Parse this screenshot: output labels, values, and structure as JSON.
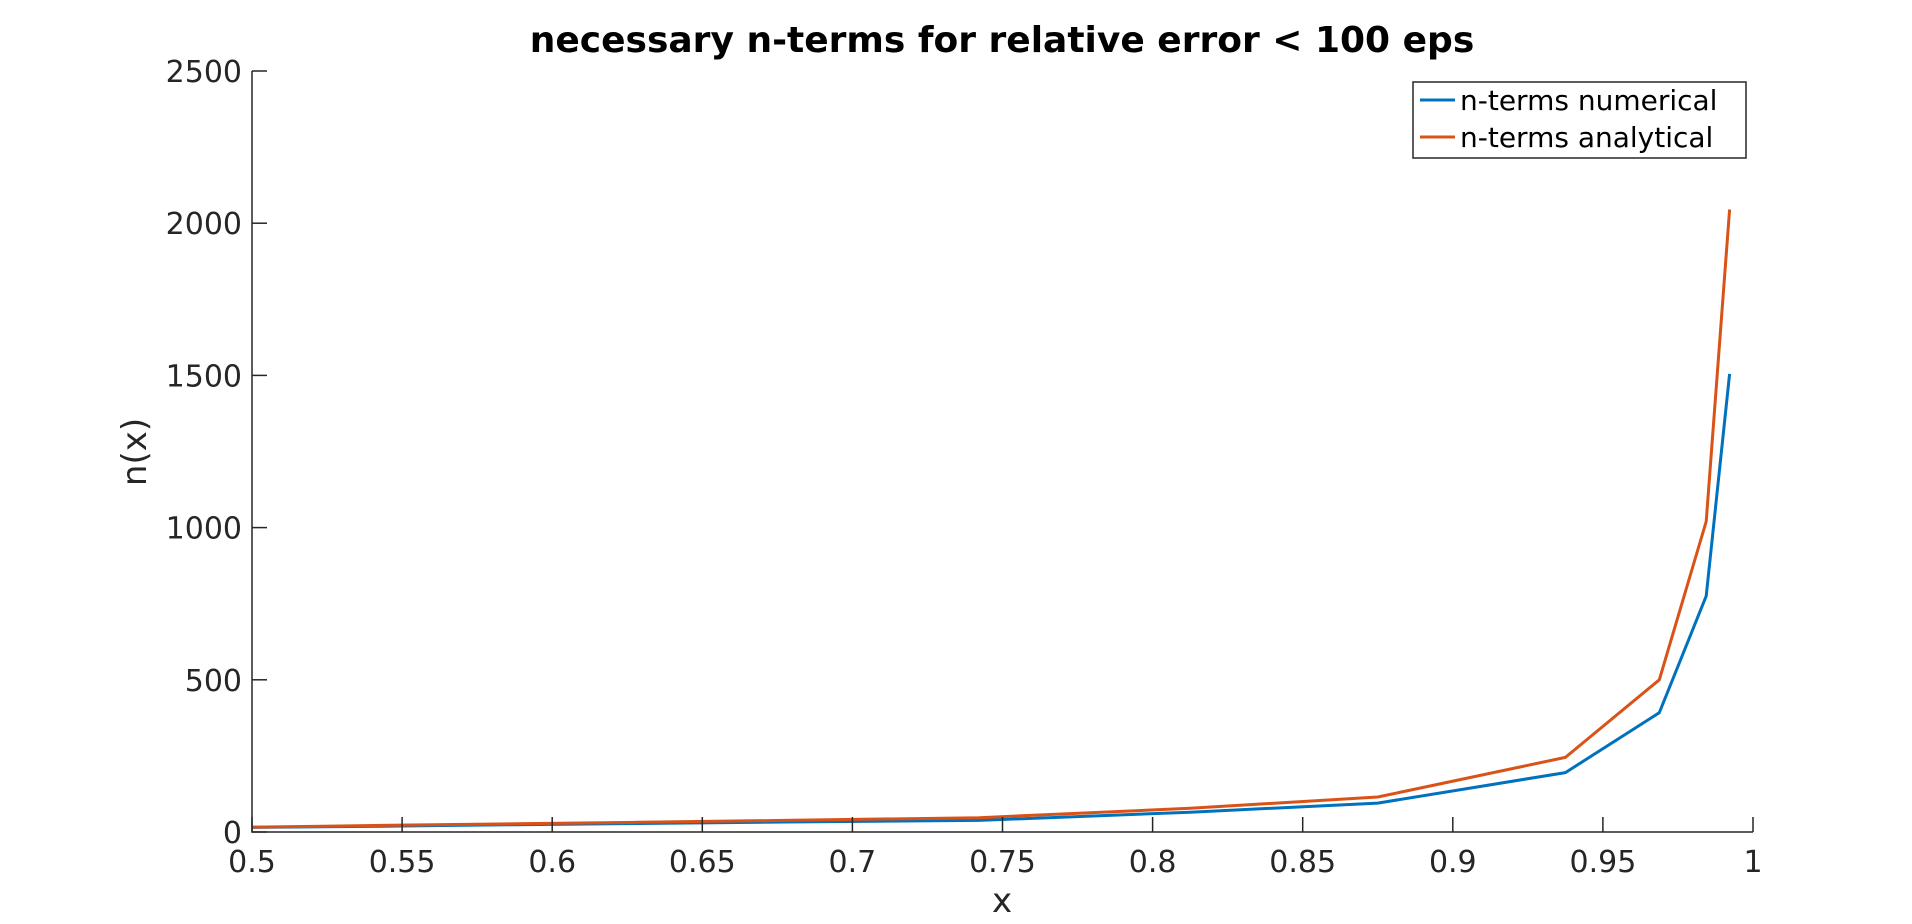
{
  "chart_data": {
    "type": "line",
    "title": "necessary n-terms for relative error < 100 eps",
    "xlabel": "x",
    "ylabel": "n(x)",
    "xlim": [
      0.5,
      1
    ],
    "ylim": [
      0,
      2500
    ],
    "x_ticks": [
      "0.5",
      "0.55",
      "0.6",
      "0.65",
      "0.7",
      "0.75",
      "0.8",
      "0.85",
      "0.9",
      "0.95",
      "1"
    ],
    "y_ticks": [
      "0",
      "500",
      "1000",
      "1500",
      "2000",
      "2500"
    ],
    "grid": false,
    "legend_position": "top-right",
    "x": [
      0.5,
      0.5236,
      0.5528,
      0.5877,
      0.6287,
      0.6773,
      0.7422,
      0.8125,
      0.875,
      0.9375,
      0.9688,
      0.9844,
      0.9922
    ],
    "series": [
      {
        "name": "n-terms numerical",
        "color": "#0072BD",
        "values": [
          15,
          17,
          20,
          24,
          28,
          33,
          38,
          65,
          95,
          195,
          392,
          775,
          1505
        ]
      },
      {
        "name": "n-terms analytical",
        "color": "#D95319",
        "values": [
          16,
          19,
          23,
          27,
          32,
          38,
          47,
          78,
          115,
          245,
          500,
          1020,
          2045
        ]
      }
    ]
  }
}
